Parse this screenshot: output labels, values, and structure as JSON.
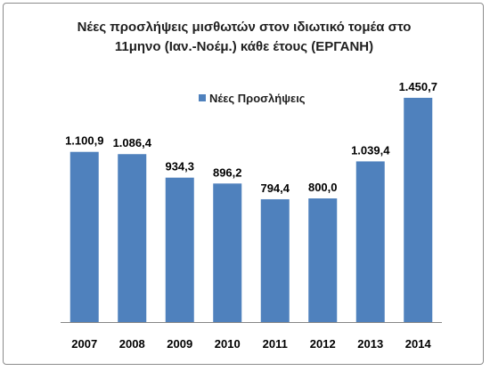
{
  "chart_data": {
    "type": "bar",
    "title_line1": "Νέες προσλήψεις μισθωτών στον ιδιωτικό τομέα στο",
    "title_line2": "11μηνο (Ιαν.-Νοέμ.) κάθε έτους (ΕΡΓΑΝΗ)",
    "categories": [
      "2007",
      "2008",
      "2009",
      "2010",
      "2011",
      "2012",
      "2013",
      "2014"
    ],
    "series": [
      {
        "name": "Νέες Προσλήψεις",
        "values": [
          1100.9,
          1086.4,
          934.3,
          896.2,
          794.4,
          800.0,
          1039.4,
          1450.7
        ],
        "labels": [
          "1.100,9",
          "1.086,4",
          "934,3",
          "896,2",
          "794,4",
          "800,0",
          "1.039,4",
          "1.450,7"
        ]
      }
    ],
    "ylim": [
      0,
      1600
    ],
    "grid": false,
    "legend_position": "top-left",
    "bar_color": "#4f81bd",
    "axis_color": "#868686"
  }
}
